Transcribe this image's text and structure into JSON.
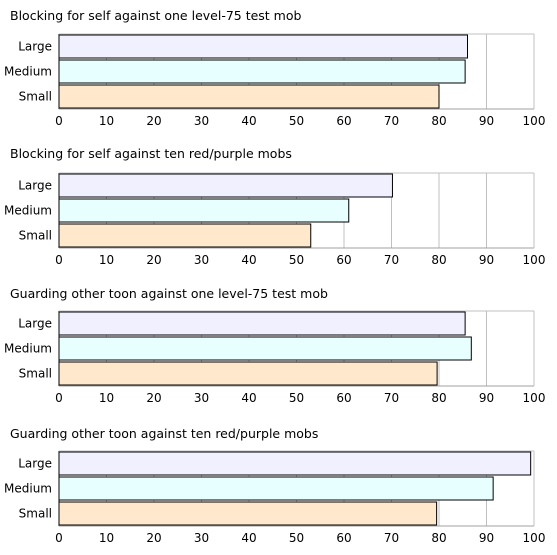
{
  "colors": {
    "large": "#f0f0ff",
    "medium": "#e8ffff",
    "small": "#ffe8cc",
    "grid": "#c0c0c0",
    "axis": "#a0a0a0",
    "bar_border": "#000000"
  },
  "chart_data": [
    {
      "type": "bar",
      "orientation": "horizontal",
      "title": "Blocking for self against one level-75 test mob",
      "categories": [
        "Large",
        "Medium",
        "Small"
      ],
      "values": [
        86,
        85.5,
        80
      ],
      "xlim": [
        0,
        100
      ],
      "xticks": [
        "0",
        "10",
        "20",
        "30",
        "40",
        "50",
        "60",
        "70",
        "80",
        "90",
        "100"
      ],
      "grid": true
    },
    {
      "type": "bar",
      "orientation": "horizontal",
      "title": "Blocking for self against ten red/purple mobs",
      "categories": [
        "Large",
        "Medium",
        "Small"
      ],
      "values": [
        70.2,
        61,
        53
      ],
      "xlim": [
        0,
        100
      ],
      "xticks": [
        "0",
        "10",
        "20",
        "30",
        "40",
        "50",
        "60",
        "70",
        "80",
        "90",
        "100"
      ],
      "grid": true
    },
    {
      "type": "bar",
      "orientation": "horizontal",
      "title": "Guarding other toon against one level-75 test mob",
      "categories": [
        "Large",
        "Medium",
        "Small"
      ],
      "values": [
        85.5,
        86.8,
        79.6
      ],
      "xlim": [
        0,
        100
      ],
      "xticks": [
        "0",
        "10",
        "20",
        "30",
        "40",
        "50",
        "60",
        "70",
        "80",
        "90",
        "100"
      ],
      "grid": true
    },
    {
      "type": "bar",
      "orientation": "horizontal",
      "title": "Guarding other toon against ten red/purple mobs",
      "categories": [
        "Large",
        "Medium",
        "Small"
      ],
      "values": [
        99.3,
        91.4,
        79.5
      ],
      "xlim": [
        0,
        100
      ],
      "xticks": [
        "0",
        "10",
        "20",
        "30",
        "40",
        "50",
        "60",
        "70",
        "80",
        "90",
        "100"
      ],
      "grid": true
    }
  ]
}
